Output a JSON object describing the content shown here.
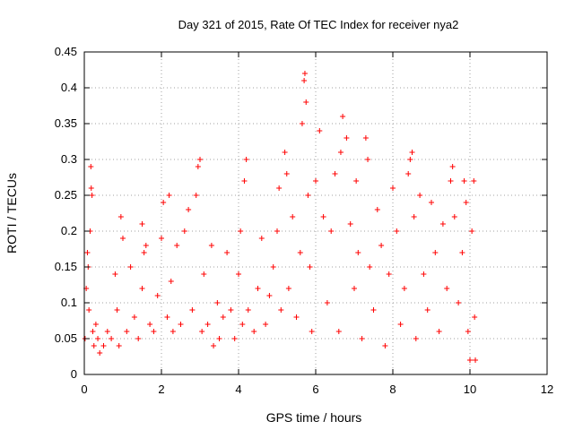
{
  "chart_data": {
    "type": "scatter",
    "title": "Day 321 of 2015, Rate Of TEC Index for receiver nya2",
    "xlabel": "GPS time / hours",
    "ylabel": "ROTI / TECUs",
    "xlim": [
      0,
      12
    ],
    "ylim": [
      0,
      0.45
    ],
    "xticks": [
      0,
      2,
      4,
      6,
      8,
      10,
      12
    ],
    "xtick_labels": [
      "0",
      "2",
      "4",
      "6",
      "8",
      "10",
      "12"
    ],
    "yticks": [
      0,
      0.05,
      0.1,
      0.15,
      0.2,
      0.25,
      0.3,
      0.35,
      0.4,
      0.45
    ],
    "ytick_labels": [
      "0",
      "0.05",
      "0.1",
      "0.15",
      "0.2",
      "0.25",
      "0.3",
      "0.35",
      "0.4",
      "0.45"
    ],
    "grid": true,
    "marker": "+",
    "color": "#ff0000",
    "series": [
      {
        "name": "ROTI",
        "points": [
          [
            0.02,
            0.05
          ],
          [
            0.05,
            0.12
          ],
          [
            0.08,
            0.17
          ],
          [
            0.1,
            0.15
          ],
          [
            0.12,
            0.09
          ],
          [
            0.15,
            0.2
          ],
          [
            0.17,
            0.29
          ],
          [
            0.18,
            0.26
          ],
          [
            0.2,
            0.25
          ],
          [
            0.22,
            0.06
          ],
          [
            0.25,
            0.04
          ],
          [
            0.3,
            0.07
          ],
          [
            0.35,
            0.05
          ],
          [
            0.4,
            0.03
          ],
          [
            0.5,
            0.04
          ],
          [
            0.6,
            0.06
          ],
          [
            0.7,
            0.05
          ],
          [
            0.8,
            0.14
          ],
          [
            0.85,
            0.09
          ],
          [
            0.9,
            0.04
          ],
          [
            0.95,
            0.22
          ],
          [
            1.0,
            0.19
          ],
          [
            1.1,
            0.06
          ],
          [
            1.2,
            0.15
          ],
          [
            1.3,
            0.08
          ],
          [
            1.4,
            0.05
          ],
          [
            1.5,
            0.12
          ],
          [
            1.5,
            0.21
          ],
          [
            1.55,
            0.17
          ],
          [
            1.6,
            0.18
          ],
          [
            1.7,
            0.07
          ],
          [
            1.8,
            0.06
          ],
          [
            1.9,
            0.11
          ],
          [
            2.0,
            0.19
          ],
          [
            2.05,
            0.24
          ],
          [
            2.15,
            0.08
          ],
          [
            2.2,
            0.25
          ],
          [
            2.25,
            0.13
          ],
          [
            2.3,
            0.06
          ],
          [
            2.4,
            0.18
          ],
          [
            2.5,
            0.07
          ],
          [
            2.6,
            0.2
          ],
          [
            2.7,
            0.23
          ],
          [
            2.8,
            0.09
          ],
          [
            2.9,
            0.25
          ],
          [
            2.95,
            0.29
          ],
          [
            3.0,
            0.3
          ],
          [
            3.05,
            0.06
          ],
          [
            3.1,
            0.14
          ],
          [
            3.2,
            0.07
          ],
          [
            3.3,
            0.18
          ],
          [
            3.35,
            0.04
          ],
          [
            3.45,
            0.1
          ],
          [
            3.5,
            0.05
          ],
          [
            3.6,
            0.08
          ],
          [
            3.7,
            0.17
          ],
          [
            3.8,
            0.09
          ],
          [
            3.9,
            0.05
          ],
          [
            4.0,
            0.14
          ],
          [
            4.05,
            0.2
          ],
          [
            4.1,
            0.07
          ],
          [
            4.15,
            0.27
          ],
          [
            4.2,
            0.3
          ],
          [
            4.25,
            0.09
          ],
          [
            4.4,
            0.06
          ],
          [
            4.5,
            0.12
          ],
          [
            4.6,
            0.19
          ],
          [
            4.7,
            0.07
          ],
          [
            4.8,
            0.11
          ],
          [
            4.9,
            0.15
          ],
          [
            5.0,
            0.2
          ],
          [
            5.05,
            0.26
          ],
          [
            5.1,
            0.09
          ],
          [
            5.2,
            0.31
          ],
          [
            5.25,
            0.28
          ],
          [
            5.3,
            0.12
          ],
          [
            5.4,
            0.22
          ],
          [
            5.5,
            0.08
          ],
          [
            5.6,
            0.17
          ],
          [
            5.65,
            0.35
          ],
          [
            5.7,
            0.41
          ],
          [
            5.72,
            0.42
          ],
          [
            5.75,
            0.38
          ],
          [
            5.8,
            0.25
          ],
          [
            5.85,
            0.15
          ],
          [
            5.9,
            0.06
          ],
          [
            6.0,
            0.27
          ],
          [
            6.1,
            0.34
          ],
          [
            6.2,
            0.22
          ],
          [
            6.3,
            0.1
          ],
          [
            6.4,
            0.2
          ],
          [
            6.5,
            0.28
          ],
          [
            6.6,
            0.06
          ],
          [
            6.65,
            0.31
          ],
          [
            6.7,
            0.36
          ],
          [
            6.8,
            0.33
          ],
          [
            6.9,
            0.21
          ],
          [
            7.0,
            0.12
          ],
          [
            7.05,
            0.27
          ],
          [
            7.1,
            0.17
          ],
          [
            7.2,
            0.05
          ],
          [
            7.3,
            0.33
          ],
          [
            7.35,
            0.3
          ],
          [
            7.4,
            0.15
          ],
          [
            7.5,
            0.09
          ],
          [
            7.6,
            0.23
          ],
          [
            7.7,
            0.18
          ],
          [
            7.8,
            0.04
          ],
          [
            7.9,
            0.14
          ],
          [
            8.0,
            0.26
          ],
          [
            8.1,
            0.2
          ],
          [
            8.2,
            0.07
          ],
          [
            8.3,
            0.12
          ],
          [
            8.4,
            0.28
          ],
          [
            8.45,
            0.3
          ],
          [
            8.5,
            0.31
          ],
          [
            8.55,
            0.22
          ],
          [
            8.6,
            0.05
          ],
          [
            8.7,
            0.25
          ],
          [
            8.8,
            0.14
          ],
          [
            8.9,
            0.09
          ],
          [
            9.0,
            0.24
          ],
          [
            9.1,
            0.17
          ],
          [
            9.2,
            0.06
          ],
          [
            9.3,
            0.21
          ],
          [
            9.4,
            0.12
          ],
          [
            9.5,
            0.27
          ],
          [
            9.55,
            0.29
          ],
          [
            9.6,
            0.22
          ],
          [
            9.7,
            0.1
          ],
          [
            9.8,
            0.17
          ],
          [
            9.85,
            0.27
          ],
          [
            9.9,
            0.24
          ],
          [
            9.95,
            0.06
          ],
          [
            10.0,
            0.02
          ],
          [
            10.05,
            0.2
          ],
          [
            10.1,
            0.27
          ],
          [
            10.12,
            0.08
          ],
          [
            10.14,
            0.02
          ]
        ]
      }
    ]
  }
}
